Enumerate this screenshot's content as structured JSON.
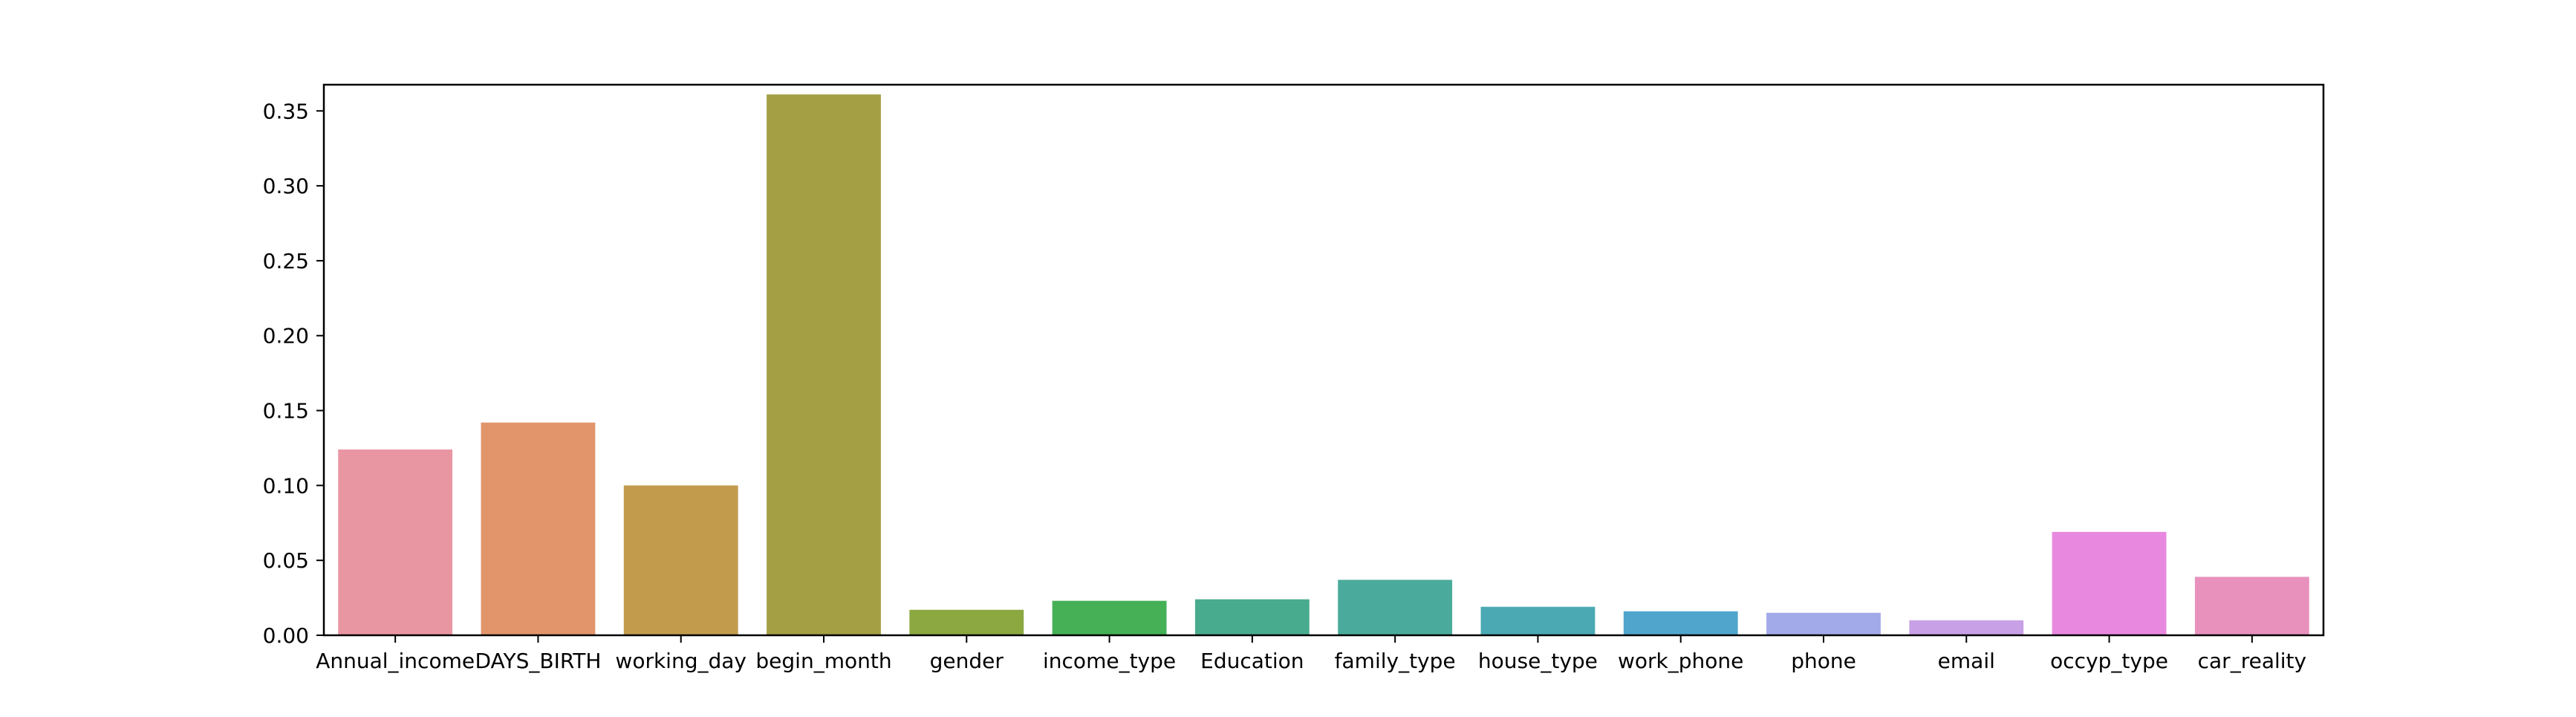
{
  "chart_data": {
    "type": "bar",
    "title": "",
    "xlabel": "",
    "ylabel": "",
    "categories": [
      "Annual_income",
      "DAYS_BIRTH",
      "working_day",
      "begin_month",
      "gender",
      "income_type",
      "Education",
      "family_type",
      "house_type",
      "work_phone",
      "phone",
      "email",
      "occyp_type",
      "car_reality"
    ],
    "values": [
      0.124,
      0.142,
      0.1,
      0.361,
      0.017,
      0.023,
      0.024,
      0.037,
      0.019,
      0.016,
      0.015,
      0.01,
      0.069,
      0.039
    ],
    "colors": [
      "#e996a3",
      "#e2956b",
      "#c29b4d",
      "#a49f44",
      "#8ba841",
      "#45b055",
      "#49ab8e",
      "#4aab9c",
      "#4aa9b3",
      "#50a5cd",
      "#a2aaea",
      "#c7a0e6",
      "#e888df",
      "#e891bd"
    ],
    "ylim": [
      0,
      0.3675
    ],
    "yticks": [
      "0.00",
      "0.05",
      "0.10",
      "0.15",
      "0.20",
      "0.25",
      "0.30",
      "0.35"
    ],
    "grid": false,
    "legend": "none"
  }
}
